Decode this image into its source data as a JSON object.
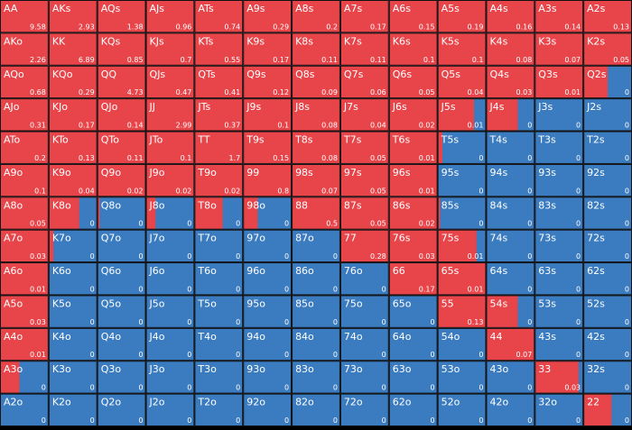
{
  "grid": {
    "colors": {
      "raise": "#e8454a",
      "fold": "#3b7bbf"
    },
    "labels": [
      [
        "AA",
        "AKs",
        "AQs",
        "AJs",
        "ATs",
        "A9s",
        "A8s",
        "A7s",
        "A6s",
        "A5s",
        "A4s",
        "A3s",
        "A2s"
      ],
      [
        "AKo",
        "KK",
        "KQs",
        "KJs",
        "KTs",
        "K9s",
        "K8s",
        "K7s",
        "K6s",
        "K5s",
        "K4s",
        "K3s",
        "K2s"
      ],
      [
        "AQo",
        "KQo",
        "QQ",
        "QJs",
        "QTs",
        "Q9s",
        "Q8s",
        "Q7s",
        "Q6s",
        "Q5s",
        "Q4s",
        "Q3s",
        "Q2s"
      ],
      [
        "AJo",
        "KJo",
        "QJo",
        "JJ",
        "JTs",
        "J9s",
        "J8s",
        "J7s",
        "J6s",
        "J5s",
        "J4s",
        "J3s",
        "J2s"
      ],
      [
        "ATo",
        "KTo",
        "QTo",
        "JTo",
        "TT",
        "T9s",
        "T8s",
        "T7s",
        "T6s",
        "T5s",
        "T4s",
        "T3s",
        "T2s"
      ],
      [
        "A9o",
        "K9o",
        "Q9o",
        "J9o",
        "T9o",
        "99",
        "98s",
        "97s",
        "96s",
        "95s",
        "94s",
        "93s",
        "92s"
      ],
      [
        "A8o",
        "K8o",
        "Q8o",
        "J8o",
        "T8o",
        "98o",
        "88",
        "87s",
        "86s",
        "85s",
        "84s",
        "83s",
        "82s"
      ],
      [
        "A7o",
        "K7o",
        "Q7o",
        "J7o",
        "T7o",
        "97o",
        "87o",
        "77",
        "76s",
        "75s",
        "74s",
        "73s",
        "72s"
      ],
      [
        "A6o",
        "K6o",
        "Q6o",
        "J6o",
        "T6o",
        "96o",
        "86o",
        "76o",
        "66",
        "65s",
        "64s",
        "63s",
        "62s"
      ],
      [
        "A5o",
        "K5o",
        "Q5o",
        "J5o",
        "T5o",
        "95o",
        "85o",
        "75o",
        "65o",
        "55",
        "54s",
        "53s",
        "52s"
      ],
      [
        "A4o",
        "K4o",
        "Q4o",
        "J4o",
        "T4o",
        "94o",
        "84o",
        "74o",
        "64o",
        "54o",
        "44",
        "43s",
        "42s"
      ],
      [
        "A3o",
        "K3o",
        "Q3o",
        "J3o",
        "T3o",
        "93o",
        "83o",
        "73o",
        "63o",
        "53o",
        "43o",
        "33",
        "32s"
      ],
      [
        "A2o",
        "K2o",
        "Q2o",
        "J2o",
        "T2o",
        "92o",
        "82o",
        "72o",
        "62o",
        "52o",
        "42o",
        "32o",
        "22"
      ]
    ],
    "values": [
      [
        9.58,
        2.93,
        1.38,
        0.96,
        0.74,
        0.29,
        0.2,
        0.17,
        0.15,
        0.19,
        0.16,
        0.14,
        0.13
      ],
      [
        2.26,
        6.89,
        0.85,
        0.7,
        0.55,
        0.17,
        0.11,
        0.11,
        0.1,
        0.1,
        0.08,
        0.07,
        0.05
      ],
      [
        0.68,
        0.29,
        4.73,
        0.47,
        0.41,
        0.12,
        0.09,
        0.06,
        0.05,
        0.04,
        0.03,
        0.01,
        0
      ],
      [
        0.31,
        0.17,
        0.14,
        2.99,
        0.37,
        0.1,
        0.08,
        0.04,
        0.02,
        0.01,
        0,
        0,
        0
      ],
      [
        0.2,
        0.13,
        0.11,
        0.1,
        1.7,
        0.15,
        0.08,
        0.05,
        0.01,
        0,
        0,
        0,
        0
      ],
      [
        0.1,
        0.04,
        0.02,
        0.02,
        0.02,
        0.8,
        0.07,
        0.05,
        0.01,
        0,
        0,
        0,
        0
      ],
      [
        0.05,
        0,
        0,
        0,
        0,
        0,
        0.5,
        0.05,
        0.02,
        0,
        0,
        0,
        0
      ],
      [
        0.03,
        0,
        0,
        0,
        0,
        0,
        0,
        0.28,
        0.03,
        0.01,
        0,
        0,
        0
      ],
      [
        0.01,
        0,
        0,
        0,
        0,
        0,
        0,
        0,
        0.17,
        0.01,
        0,
        0,
        0
      ],
      [
        0.03,
        0,
        0,
        0,
        0,
        0,
        0,
        0,
        0,
        0.13,
        0,
        0,
        0
      ],
      [
        0.01,
        0,
        0,
        0,
        0,
        0,
        0,
        0,
        0,
        0,
        0.07,
        0,
        0
      ],
      [
        0,
        0,
        0,
        0,
        0,
        0,
        0,
        0,
        0,
        0,
        0,
        0.03,
        0
      ],
      [
        0,
        0,
        0,
        0,
        0,
        0,
        0,
        0,
        0,
        0,
        0,
        0,
        0
      ]
    ],
    "frequencies": [
      [
        1,
        1,
        1,
        1,
        1,
        1,
        1,
        1,
        1,
        1,
        1,
        1,
        1
      ],
      [
        1,
        1,
        1,
        1,
        1,
        1,
        1,
        1,
        1,
        1,
        1,
        1,
        1
      ],
      [
        1,
        1,
        1,
        1,
        1,
        1,
        1,
        1,
        1,
        1,
        1,
        1,
        0.5
      ],
      [
        1,
        1,
        1,
        1,
        1,
        1,
        1,
        1,
        1,
        0.75,
        0.65,
        0,
        0
      ],
      [
        1,
        1,
        1,
        1,
        1,
        1,
        1,
        1,
        1,
        0.1,
        0,
        0,
        0
      ],
      [
        1,
        1,
        1,
        1,
        1,
        1,
        1,
        1,
        1,
        0,
        0,
        0,
        0
      ],
      [
        1,
        0.63,
        0.05,
        0.2,
        0.58,
        0.3,
        1,
        1,
        1,
        0.05,
        0,
        0,
        0
      ],
      [
        1,
        0.1,
        0,
        0,
        0,
        0,
        0,
        1,
        1,
        0.8,
        0,
        0,
        0
      ],
      [
        1,
        0,
        0,
        0,
        0,
        0,
        0,
        0,
        1,
        1,
        0,
        0,
        0
      ],
      [
        1,
        0,
        0,
        0,
        0,
        0,
        0,
        0,
        0,
        1,
        0.65,
        0,
        0
      ],
      [
        1,
        0,
        0,
        0,
        0,
        0,
        0,
        0,
        0,
        0,
        1,
        0,
        0
      ],
      [
        0.4,
        0,
        0,
        0,
        0,
        0,
        0,
        0,
        0,
        0,
        0,
        0.9,
        0
      ],
      [
        0,
        0,
        0,
        0,
        0,
        0,
        0,
        0,
        0,
        0,
        0,
        0,
        0.58
      ]
    ]
  }
}
